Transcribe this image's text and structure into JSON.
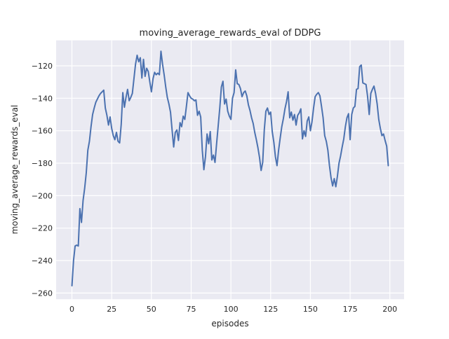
{
  "figure": {
    "title": "moving_average_rewards_eval of DDPG",
    "xlabel": "episodes",
    "ylabel": "moving_average_rewards_eval"
  },
  "chart_data": {
    "type": "line",
    "title": "moving_average_rewards_eval of DDPG",
    "xlabel": "episodes",
    "ylabel": "moving_average_rewards_eval",
    "legend": null,
    "grid": true,
    "style": "seaborn-darkgrid",
    "plot_bg_color": "#eaeaf2",
    "grid_color": "#ffffff",
    "line_color": "#4c72b0",
    "text_color": "#262626",
    "x_ticks": [
      0,
      25,
      50,
      75,
      100,
      125,
      150,
      175,
      200
    ],
    "y_ticks": [
      -120,
      -140,
      -160,
      -180,
      -200,
      -220,
      -240,
      -260
    ],
    "xlim": [
      -9.95,
      208.95
    ],
    "ylim": [
      -263.8,
      -104.3
    ],
    "x_start": 0,
    "x_step": 1,
    "values": [
      -255.5,
      -240,
      -231,
      -230.5,
      -231,
      -208,
      -216.5,
      -203,
      -195.5,
      -186,
      -172,
      -166.5,
      -157.5,
      -150,
      -146,
      -142.5,
      -140.5,
      -138.5,
      -137,
      -136,
      -135,
      -146,
      -150.5,
      -156.5,
      -151.5,
      -158.5,
      -163,
      -165.5,
      -161,
      -166.5,
      -167.5,
      -156,
      -136.5,
      -145.5,
      -139.5,
      -134.5,
      -141.5,
      -139.5,
      -137,
      -128,
      -119,
      -113.5,
      -117.5,
      -115,
      -127.5,
      -116,
      -126.5,
      -121.5,
      -123.5,
      -130,
      -136,
      -128,
      -124,
      -125.5,
      -124.5,
      -125.5,
      -111,
      -119,
      -125.5,
      -133,
      -139.5,
      -143.5,
      -148.5,
      -159.5,
      -170,
      -161,
      -159.5,
      -166,
      -155,
      -157.5,
      -151,
      -153,
      -145,
      -136.5,
      -138.5,
      -140,
      -140.5,
      -141.5,
      -141,
      -150.5,
      -148,
      -151.5,
      -172,
      -184,
      -176,
      -162,
      -168,
      -160.5,
      -178,
      -175,
      -179.5,
      -168,
      -157,
      -146,
      -133,
      -129.5,
      -143.5,
      -140.5,
      -148,
      -151,
      -153,
      -140,
      -136.5,
      -122.5,
      -131,
      -131.5,
      -134,
      -139,
      -136.5,
      -135.5,
      -138.5,
      -144,
      -147.5,
      -152,
      -155.5,
      -161,
      -165.5,
      -170.5,
      -176.5,
      -184.5,
      -179.5,
      -159.5,
      -148,
      -146,
      -150,
      -148.5,
      -160.5,
      -167,
      -176,
      -181.5,
      -172,
      -164.5,
      -157.5,
      -152.5,
      -146.5,
      -142,
      -136,
      -152,
      -148.5,
      -153.5,
      -150,
      -156.5,
      -150.5,
      -149,
      -146.5,
      -165,
      -160,
      -163.5,
      -154,
      -151.5,
      -160,
      -154.5,
      -146,
      -139,
      -137.5,
      -136.5,
      -138.5,
      -145,
      -152,
      -163,
      -166.5,
      -172,
      -181.5,
      -189,
      -194,
      -189.5,
      -194.5,
      -188,
      -180,
      -175.5,
      -170,
      -165,
      -157.5,
      -152,
      -149.5,
      -165.5,
      -150,
      -146,
      -145,
      -134.5,
      -134,
      -120.5,
      -119.5,
      -130.5,
      -131,
      -131.5,
      -139,
      -150,
      -137,
      -134.5,
      -132.5,
      -137,
      -143.5,
      -153,
      -158.5,
      -163,
      -162,
      -166,
      -169.5,
      -181.5
    ]
  }
}
